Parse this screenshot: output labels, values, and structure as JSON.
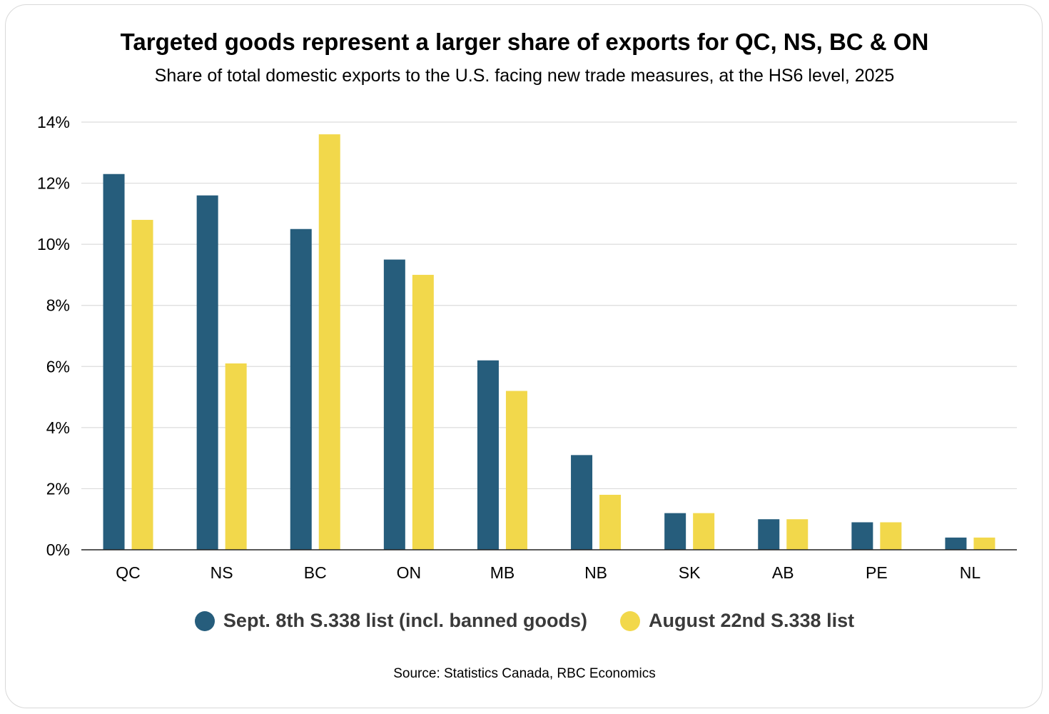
{
  "chart_data": {
    "type": "bar",
    "title": "Targeted goods represent a larger share of exports for QC, NS, BC & ON",
    "subtitle": "Share of total domestic exports to the U.S. facing new trade measures, at the HS6 level, 2025",
    "categories": [
      "QC",
      "NS",
      "BC",
      "ON",
      "MB",
      "NB",
      "SK",
      "AB",
      "PE",
      "NL"
    ],
    "series": [
      {
        "name": "Sept. 8th S.338 list (incl. banned goods)",
        "color": "#265d7c",
        "values": [
          12.3,
          11.6,
          10.5,
          9.5,
          6.2,
          3.1,
          1.2,
          1.0,
          0.9,
          0.4
        ]
      },
      {
        "name": "August 22nd S.338 list",
        "color": "#f2d84b",
        "values": [
          10.8,
          6.1,
          13.6,
          9.0,
          5.2,
          1.8,
          1.2,
          1.0,
          0.9,
          0.4
        ]
      }
    ],
    "ylim": [
      0,
      14
    ],
    "yticks": [
      0,
      2,
      4,
      6,
      8,
      10,
      12,
      14
    ],
    "ytick_suffix": "%",
    "xlabel": "",
    "ylabel": "",
    "grid": "horizontal",
    "legend_position": "bottom"
  },
  "source": "Source: Statistics Canada, RBC Economics"
}
